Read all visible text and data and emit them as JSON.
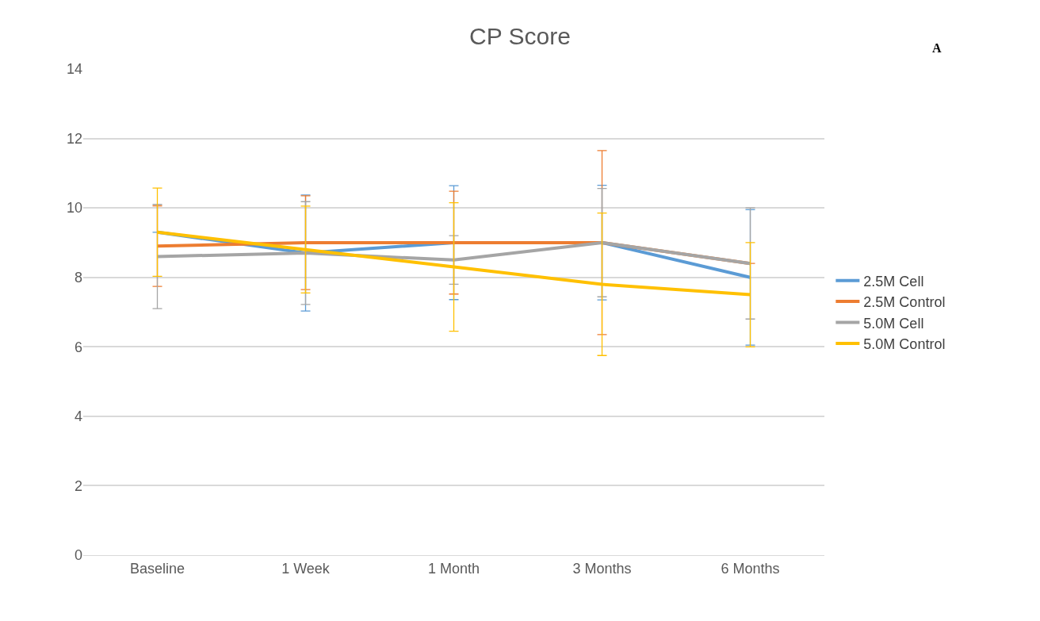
{
  "chart_data": {
    "type": "line",
    "title": "CP Score",
    "annotations": [
      "A"
    ],
    "categories": [
      "Baseline",
      "1 Week",
      "1 Month",
      "3 Months",
      "6 Months"
    ],
    "series": [
      {
        "name": "2.5M Cell",
        "color": "#5b9bd5",
        "values": [
          9.3,
          8.7,
          9.0,
          9.0,
          8.0
        ],
        "errors": [
          null,
          1.67,
          1.64,
          1.65,
          1.95
        ]
      },
      {
        "name": "2.5M Control",
        "color": "#ed7d31",
        "values": [
          8.9,
          9.0,
          9.0,
          9.0,
          8.4
        ],
        "errors": [
          1.16,
          1.35,
          1.48,
          2.65,
          null
        ]
      },
      {
        "name": "5.0M Cell",
        "color": "#a5a5a5",
        "values": [
          8.6,
          8.7,
          8.5,
          9.0,
          8.4
        ],
        "errors": [
          1.5,
          1.48,
          0.7,
          1.56,
          1.6
        ]
      },
      {
        "name": "5.0M Control",
        "color": "#ffc000",
        "values": [
          9.3,
          8.8,
          8.3,
          7.8,
          7.5
        ],
        "errors": [
          1.27,
          1.25,
          1.85,
          2.05,
          1.5
        ]
      }
    ],
    "ylim": [
      0,
      14
    ],
    "yticks": [
      0,
      2,
      4,
      6,
      8,
      10,
      12,
      14
    ],
    "grid": "y",
    "legend": "right",
    "marker": "none",
    "line_style": "solid"
  }
}
